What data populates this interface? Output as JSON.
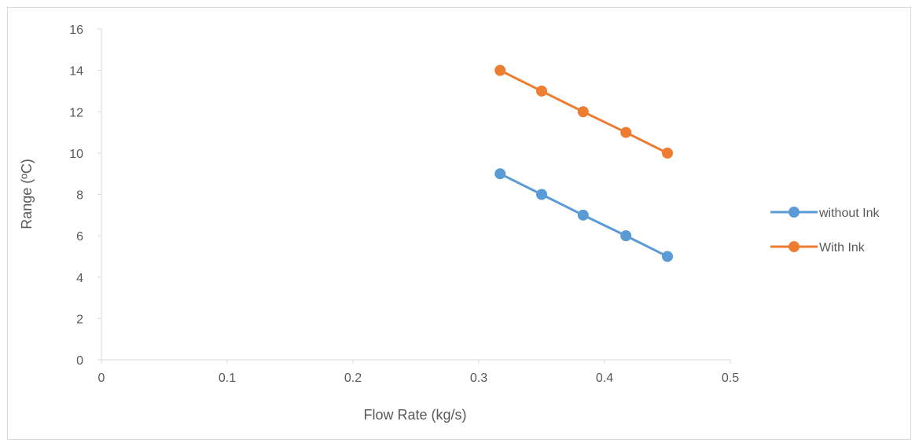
{
  "chart_data": {
    "type": "line",
    "title": "",
    "xlabel": "Flow Rate (kg/s)",
    "ylabel": "Range (ºC)",
    "xlim": [
      0,
      0.5
    ],
    "ylim": [
      0,
      16
    ],
    "x_ticks": [
      "0",
      "0.1",
      "0.2",
      "0.3",
      "0.4",
      "0.5"
    ],
    "x_tick_values": [
      0,
      0.1,
      0.2,
      0.3,
      0.4,
      0.5
    ],
    "y_ticks": [
      "0",
      "2",
      "4",
      "6",
      "8",
      "10",
      "12",
      "14",
      "16"
    ],
    "y_tick_values": [
      0,
      2,
      4,
      6,
      8,
      10,
      12,
      14,
      16
    ],
    "grid": false,
    "legend_position": "right",
    "series": [
      {
        "name": "without Ink",
        "color": "#5b9bd5",
        "x": [
          0.317,
          0.35,
          0.383,
          0.417,
          0.45
        ],
        "y": [
          9,
          8,
          7,
          6,
          5
        ]
      },
      {
        "name": "With Ink",
        "color": "#ed7d31",
        "x": [
          0.317,
          0.35,
          0.383,
          0.417,
          0.45
        ],
        "y": [
          14,
          13,
          12,
          11,
          10
        ]
      }
    ]
  }
}
